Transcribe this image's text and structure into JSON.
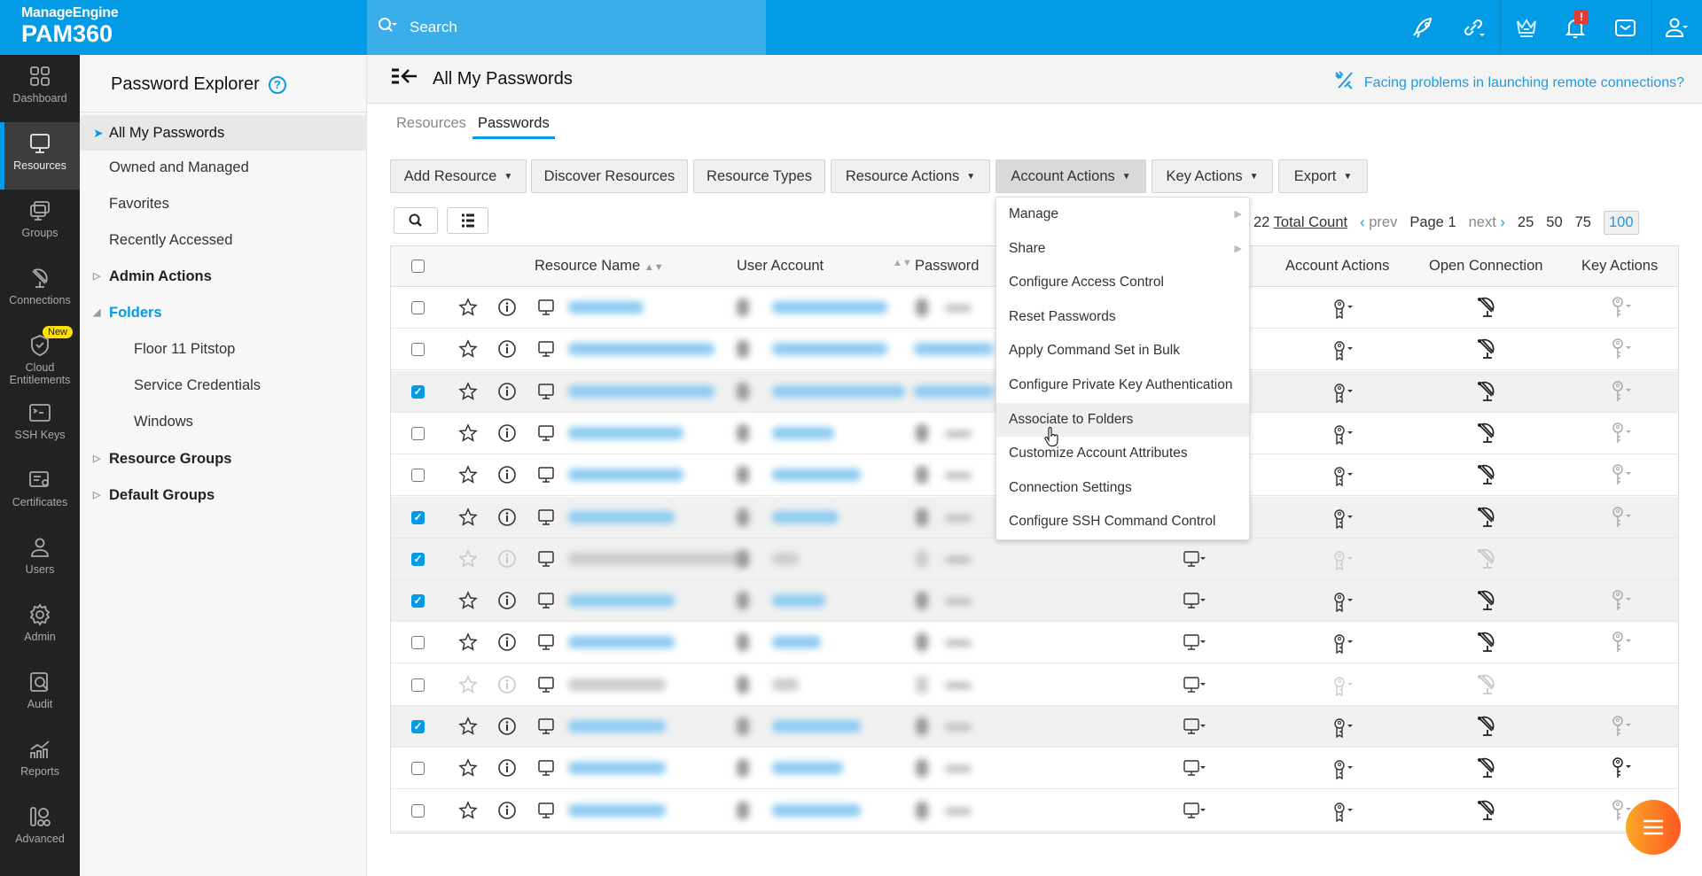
{
  "brand": {
    "company": "ManageEngine",
    "product": "PAM360"
  },
  "search": {
    "placeholder": "Search"
  },
  "topbar": {
    "icons": [
      "rocket-icon",
      "link-icon",
      "crown-icon",
      "bell-icon",
      "mail-icon",
      "user-icon"
    ],
    "notification_badge": "!"
  },
  "rail": {
    "items": [
      {
        "label": "Dashboard",
        "icon": "dashboard-icon"
      },
      {
        "label": "Resources",
        "icon": "monitor-icon",
        "active": true
      },
      {
        "label": "Groups",
        "icon": "groups-icon"
      },
      {
        "label": "Connections",
        "icon": "connections-icon"
      },
      {
        "label": "Cloud Entitlements",
        "icon": "cloud-shield-icon",
        "badge": "New"
      },
      {
        "label": "SSH Keys",
        "icon": "ssh-icon"
      },
      {
        "label": "Certificates",
        "icon": "certificate-icon"
      },
      {
        "label": "Users",
        "icon": "user-icon"
      },
      {
        "label": "Admin",
        "icon": "gear-icon"
      },
      {
        "label": "Audit",
        "icon": "audit-icon"
      },
      {
        "label": "Reports",
        "icon": "reports-icon"
      },
      {
        "label": "Advanced",
        "icon": "advanced-icon"
      }
    ]
  },
  "explorer": {
    "title": "Password Explorer",
    "help": "?",
    "items": [
      {
        "label": "All My Passwords",
        "selected": true
      },
      {
        "label": "Owned and Managed"
      },
      {
        "label": "Favorites"
      },
      {
        "label": "Recently Accessed"
      },
      {
        "label": "Admin Actions",
        "group": true
      },
      {
        "label": "Folders",
        "group": true,
        "expanded": true
      },
      {
        "label": "Floor 11 Pitstop",
        "sub": true
      },
      {
        "label": "Service Credentials",
        "sub": true
      },
      {
        "label": "Windows",
        "sub": true
      },
      {
        "label": "Resource Groups",
        "group": true
      },
      {
        "label": "Default Groups",
        "group": true
      }
    ]
  },
  "header": {
    "title": "All My Passwords",
    "help_link": "Facing problems in launching remote connections?"
  },
  "tabs": [
    {
      "label": "Resources"
    },
    {
      "label": "Passwords",
      "active": true
    }
  ],
  "toolbar": {
    "buttons": [
      {
        "label": "Add Resource",
        "dropdown": true
      },
      {
        "label": "Discover Resources"
      },
      {
        "label": "Resource Types"
      },
      {
        "label": "Resource Actions",
        "dropdown": true
      },
      {
        "label": "Account Actions",
        "dropdown": true,
        "active": true
      },
      {
        "label": "Key Actions",
        "dropdown": true
      },
      {
        "label": "Export",
        "dropdown": true
      }
    ]
  },
  "pagination": {
    "count": "22",
    "count_label": "Total Count",
    "prev": "prev",
    "page": "Page 1",
    "next": "next",
    "sizes": [
      "25",
      "50",
      "75",
      "100"
    ],
    "selected_size": "100"
  },
  "table": {
    "columns": [
      "Resource Name",
      "User Account",
      "Password",
      "Account Actions",
      "Open Connection",
      "Key Actions"
    ],
    "rows": [
      {
        "checked": false,
        "disabled": false,
        "key_active": false
      },
      {
        "checked": false,
        "disabled": false,
        "key_active": false
      },
      {
        "checked": true,
        "disabled": false,
        "key_active": false
      },
      {
        "checked": false,
        "disabled": false,
        "key_active": false
      },
      {
        "checked": false,
        "disabled": false,
        "key_active": false
      },
      {
        "checked": true,
        "disabled": false,
        "key_active": false
      },
      {
        "checked": true,
        "disabled": true,
        "key_active": false
      },
      {
        "checked": true,
        "disabled": false,
        "key_active": false
      },
      {
        "checked": false,
        "disabled": false,
        "key_active": false
      },
      {
        "checked": false,
        "disabled": true,
        "key_active": false
      },
      {
        "checked": true,
        "disabled": false,
        "key_active": false
      },
      {
        "checked": false,
        "disabled": false,
        "key_active": true
      },
      {
        "checked": false,
        "disabled": false,
        "key_active": false
      }
    ]
  },
  "account_actions_menu": {
    "items": [
      {
        "label": "Manage",
        "submenu": true
      },
      {
        "label": "Share",
        "submenu": true
      },
      {
        "label": "Configure Access Control"
      },
      {
        "label": "Reset Passwords"
      },
      {
        "label": "Apply Command Set in Bulk"
      },
      {
        "label": "Configure Private Key Authentication"
      },
      {
        "label": "Associate to Folders",
        "hover": true
      },
      {
        "label": "Customize Account Attributes"
      },
      {
        "label": "Connection Settings"
      },
      {
        "label": "Configure SSH Command Control"
      }
    ]
  },
  "colors": {
    "brand": "#039be5",
    "fab": "#ff7a1f",
    "badge_new": "#ffe000"
  }
}
